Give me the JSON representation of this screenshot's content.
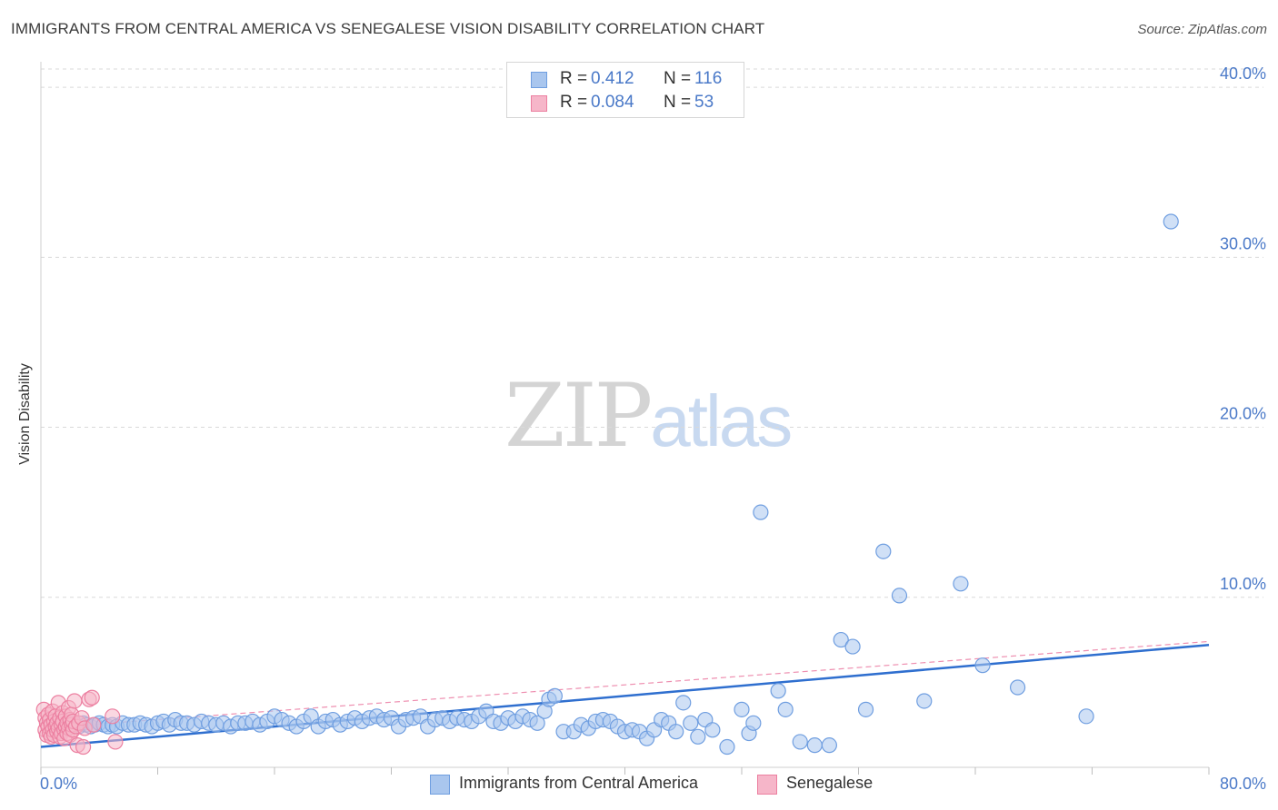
{
  "title": "IMMIGRANTS FROM CENTRAL AMERICA VS SENEGALESE VISION DISABILITY CORRELATION CHART",
  "source": "Source: ZipAtlas.com",
  "watermark": {
    "zip": "ZIP",
    "atlas": "atlas"
  },
  "legend_top": [
    {
      "r_label": "R =",
      "r_value": "0.412",
      "n_label": "N =",
      "n_value": "116"
    },
    {
      "r_label": "R =",
      "r_value": "0.084",
      "n_label": "N =",
      "n_value": "53"
    }
  ],
  "legend_bottom": [
    {
      "label": "Immigrants from Central America"
    },
    {
      "label": "Senegalese"
    }
  ],
  "colors": {
    "blue_fill": "#a9c6ee",
    "blue_stroke": "#6f9ee0",
    "blue_line": "#2f6fcf",
    "pink_fill": "#f6b6c9",
    "pink_stroke": "#ec7fa0",
    "pink_line": "#ee8fb0",
    "tick_text": "#4a79c8",
    "grid": "#d9d9d9"
  },
  "chart_data": {
    "type": "scatter",
    "title": "IMMIGRANTS FROM CENTRAL AMERICA VS SENEGALESE VISION DISABILITY CORRELATION CHART",
    "xlabel": "",
    "ylabel": "Vision Disability",
    "xlim": [
      0,
      80
    ],
    "ylim": [
      0,
      41.5
    ],
    "x_tick_labels": [
      "0.0%",
      "80.0%"
    ],
    "y_ticks": [
      10,
      20,
      30,
      40
    ],
    "y_tick_labels": [
      "10.0%",
      "20.0%",
      "30.0%",
      "40.0%"
    ],
    "grid": true,
    "series": [
      {
        "name": "Immigrants from Central America",
        "r": 0.412,
        "n": 116,
        "trend": {
          "x": [
            0,
            80
          ],
          "y": [
            1.2,
            7.2
          ]
        },
        "points": [
          [
            1.2,
            2.4
          ],
          [
            1.6,
            2.5
          ],
          [
            1.8,
            2.3
          ],
          [
            2.0,
            2.6
          ],
          [
            2.3,
            2.5
          ],
          [
            2.6,
            2.4
          ],
          [
            2.9,
            2.6
          ],
          [
            3.1,
            2.5
          ],
          [
            3.4,
            2.4
          ],
          [
            3.7,
            2.5
          ],
          [
            4.0,
            2.6
          ],
          [
            4.3,
            2.5
          ],
          [
            4.6,
            2.4
          ],
          [
            4.9,
            2.5
          ],
          [
            5.2,
            2.4
          ],
          [
            5.6,
            2.6
          ],
          [
            6.0,
            2.5
          ],
          [
            6.4,
            2.5
          ],
          [
            6.8,
            2.6
          ],
          [
            7.2,
            2.5
          ],
          [
            7.6,
            2.4
          ],
          [
            8.0,
            2.6
          ],
          [
            8.4,
            2.7
          ],
          [
            8.8,
            2.5
          ],
          [
            9.2,
            2.8
          ],
          [
            9.6,
            2.6
          ],
          [
            10.0,
            2.6
          ],
          [
            10.5,
            2.5
          ],
          [
            11.0,
            2.7
          ],
          [
            11.5,
            2.6
          ],
          [
            12.0,
            2.5
          ],
          [
            12.5,
            2.6
          ],
          [
            13.0,
            2.4
          ],
          [
            13.5,
            2.6
          ],
          [
            14.0,
            2.6
          ],
          [
            14.5,
            2.7
          ],
          [
            15.0,
            2.5
          ],
          [
            15.5,
            2.7
          ],
          [
            16.0,
            3.0
          ],
          [
            16.5,
            2.8
          ],
          [
            17.0,
            2.6
          ],
          [
            17.5,
            2.4
          ],
          [
            18.0,
            2.7
          ],
          [
            18.5,
            3.0
          ],
          [
            19.0,
            2.4
          ],
          [
            19.5,
            2.7
          ],
          [
            20.0,
            2.8
          ],
          [
            20.5,
            2.5
          ],
          [
            21.0,
            2.7
          ],
          [
            21.5,
            2.9
          ],
          [
            22.0,
            2.7
          ],
          [
            22.5,
            2.9
          ],
          [
            23.0,
            3.0
          ],
          [
            23.5,
            2.8
          ],
          [
            24.0,
            2.9
          ],
          [
            24.5,
            2.4
          ],
          [
            25.0,
            2.8
          ],
          [
            25.5,
            2.9
          ],
          [
            26.0,
            3.0
          ],
          [
            26.5,
            2.4
          ],
          [
            27.0,
            2.8
          ],
          [
            27.5,
            2.9
          ],
          [
            28.0,
            2.7
          ],
          [
            28.5,
            2.9
          ],
          [
            29.0,
            2.8
          ],
          [
            29.5,
            2.7
          ],
          [
            30.0,
            3.0
          ],
          [
            30.5,
            3.3
          ],
          [
            31.0,
            2.7
          ],
          [
            31.5,
            2.6
          ],
          [
            32.0,
            2.9
          ],
          [
            32.5,
            2.7
          ],
          [
            33.0,
            3.0
          ],
          [
            33.5,
            2.8
          ],
          [
            34.0,
            2.6
          ],
          [
            34.5,
            3.3
          ],
          [
            34.8,
            4.0
          ],
          [
            35.2,
            4.2
          ],
          [
            35.8,
            2.1
          ],
          [
            36.5,
            2.1
          ],
          [
            37.0,
            2.5
          ],
          [
            37.5,
            2.3
          ],
          [
            38.0,
            2.7
          ],
          [
            38.5,
            2.8
          ],
          [
            39.0,
            2.7
          ],
          [
            39.5,
            2.4
          ],
          [
            40.0,
            2.1
          ],
          [
            40.5,
            2.2
          ],
          [
            41.0,
            2.1
          ],
          [
            41.5,
            1.7
          ],
          [
            42.0,
            2.2
          ],
          [
            42.5,
            2.8
          ],
          [
            43.0,
            2.6
          ],
          [
            43.5,
            2.1
          ],
          [
            44.0,
            3.8
          ],
          [
            44.5,
            2.6
          ],
          [
            45.0,
            1.8
          ],
          [
            45.5,
            2.8
          ],
          [
            46.0,
            2.2
          ],
          [
            47.0,
            1.2
          ],
          [
            48.0,
            3.4
          ],
          [
            48.5,
            2.0
          ],
          [
            49.3,
            15.0
          ],
          [
            50.5,
            4.5
          ],
          [
            51.0,
            3.4
          ],
          [
            52.0,
            1.5
          ],
          [
            53.0,
            1.3
          ],
          [
            54.0,
            1.3
          ],
          [
            54.8,
            7.5
          ],
          [
            55.6,
            7.1
          ],
          [
            56.5,
            3.4
          ],
          [
            57.7,
            12.7
          ],
          [
            58.8,
            10.1
          ],
          [
            60.5,
            3.9
          ],
          [
            63.0,
            10.8
          ],
          [
            64.5,
            6.0
          ],
          [
            66.9,
            4.7
          ],
          [
            71.6,
            3.0
          ],
          [
            77.4,
            32.1
          ],
          [
            48.8,
            2.6
          ]
        ]
      },
      {
        "name": "Senegalese",
        "r": 0.084,
        "n": 53,
        "trend": {
          "x": [
            0,
            80
          ],
          "y": [
            2.3,
            7.4
          ]
        },
        "points": [
          [
            0.2,
            3.4
          ],
          [
            0.3,
            2.9
          ],
          [
            0.3,
            2.2
          ],
          [
            0.4,
            1.9
          ],
          [
            0.4,
            2.6
          ],
          [
            0.5,
            3.1
          ],
          [
            0.5,
            2.4
          ],
          [
            0.6,
            2.0
          ],
          [
            0.6,
            2.8
          ],
          [
            0.7,
            1.8
          ],
          [
            0.7,
            2.5
          ],
          [
            0.8,
            3.3
          ],
          [
            0.8,
            2.2
          ],
          [
            0.9,
            2.7
          ],
          [
            0.9,
            1.9
          ],
          [
            1.0,
            2.4
          ],
          [
            1.0,
            3.0
          ],
          [
            1.1,
            2.1
          ],
          [
            1.1,
            2.6
          ],
          [
            1.2,
            3.8
          ],
          [
            1.2,
            2.3
          ],
          [
            1.3,
            1.8
          ],
          [
            1.3,
            2.9
          ],
          [
            1.4,
            2.5
          ],
          [
            1.4,
            2.0
          ],
          [
            1.5,
            3.2
          ],
          [
            1.5,
            2.7
          ],
          [
            1.6,
            2.2
          ],
          [
            1.6,
            1.7
          ],
          [
            1.7,
            2.4
          ],
          [
            1.7,
            3.0
          ],
          [
            1.8,
            2.0
          ],
          [
            1.8,
            2.6
          ],
          [
            1.9,
            3.5
          ],
          [
            1.9,
            2.3
          ],
          [
            2.0,
            2.8
          ],
          [
            2.0,
            1.9
          ],
          [
            2.1,
            2.5
          ],
          [
            2.1,
            3.1
          ],
          [
            2.2,
            2.2
          ],
          [
            2.2,
            2.7
          ],
          [
            2.3,
            3.9
          ],
          [
            2.4,
            2.4
          ],
          [
            2.5,
            1.3
          ],
          [
            2.6,
            2.6
          ],
          [
            2.8,
            2.9
          ],
          [
            2.9,
            1.2
          ],
          [
            3.0,
            2.3
          ],
          [
            3.3,
            4.0
          ],
          [
            3.5,
            4.1
          ],
          [
            3.6,
            2.5
          ],
          [
            4.9,
            3.0
          ],
          [
            5.1,
            1.5
          ]
        ]
      }
    ]
  }
}
